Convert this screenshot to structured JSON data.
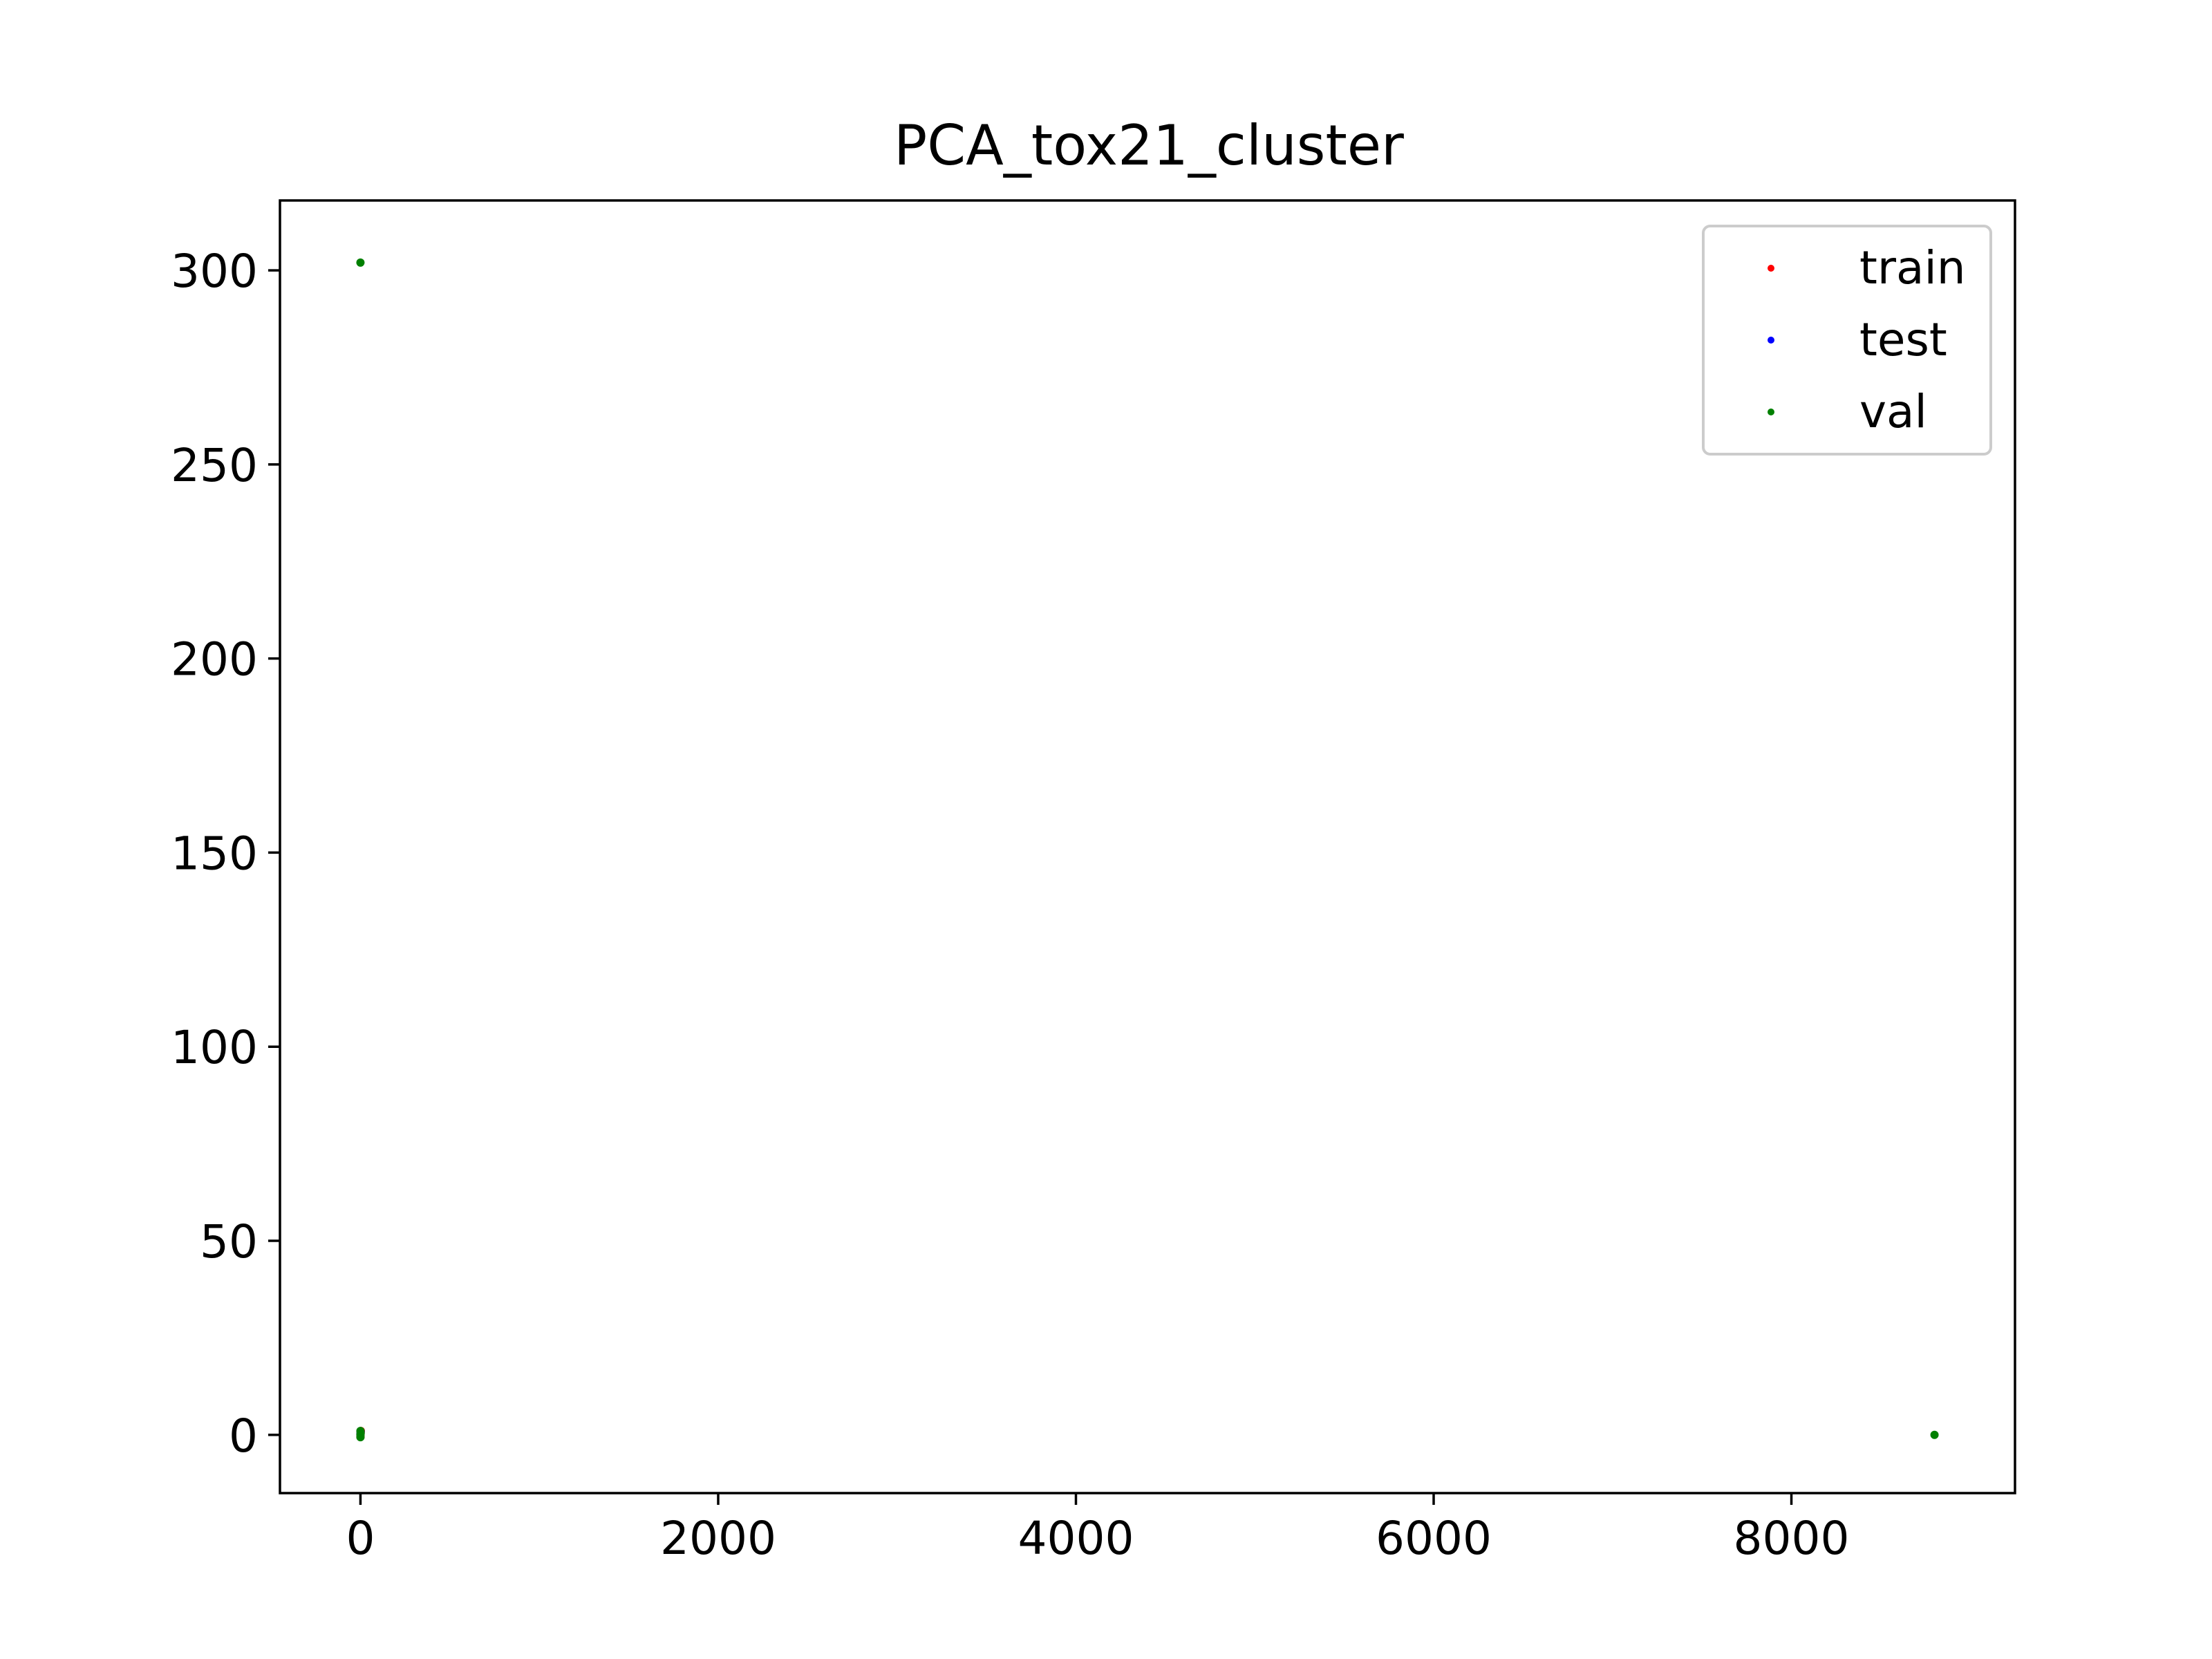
{
  "chart_data": {
    "type": "scatter",
    "title": "PCA_tox21_cluster",
    "xlabel": "",
    "ylabel": "",
    "xlim": [
      -450,
      9250
    ],
    "ylim": [
      -15,
      318
    ],
    "x_ticks": [
      0,
      2000,
      4000,
      6000,
      8000
    ],
    "x_tick_labels": [
      "0",
      "2000",
      "4000",
      "6000",
      "8000"
    ],
    "y_ticks": [
      0,
      50,
      100,
      150,
      200,
      250,
      300
    ],
    "y_tick_labels": [
      "0",
      "50",
      "100",
      "150",
      "200",
      "250",
      "300"
    ],
    "grid": false,
    "legend": {
      "placement": "top-right"
    },
    "series": [
      {
        "name": "train",
        "color": "#ff0000",
        "points": [
          [
            0,
            0
          ],
          [
            1,
            0.5
          ],
          [
            2,
            1
          ],
          [
            0,
            -0.5
          ]
        ]
      },
      {
        "name": "test",
        "color": "#0000ff",
        "points": [
          [
            0,
            0.2
          ],
          [
            1,
            0.8
          ]
        ]
      },
      {
        "name": "val",
        "color": "#008000",
        "points": [
          [
            0,
            302
          ],
          [
            0,
            0
          ],
          [
            0,
            1
          ],
          [
            1,
            0.4
          ],
          [
            0,
            -0.6
          ],
          [
            8800,
            0
          ]
        ]
      }
    ]
  }
}
